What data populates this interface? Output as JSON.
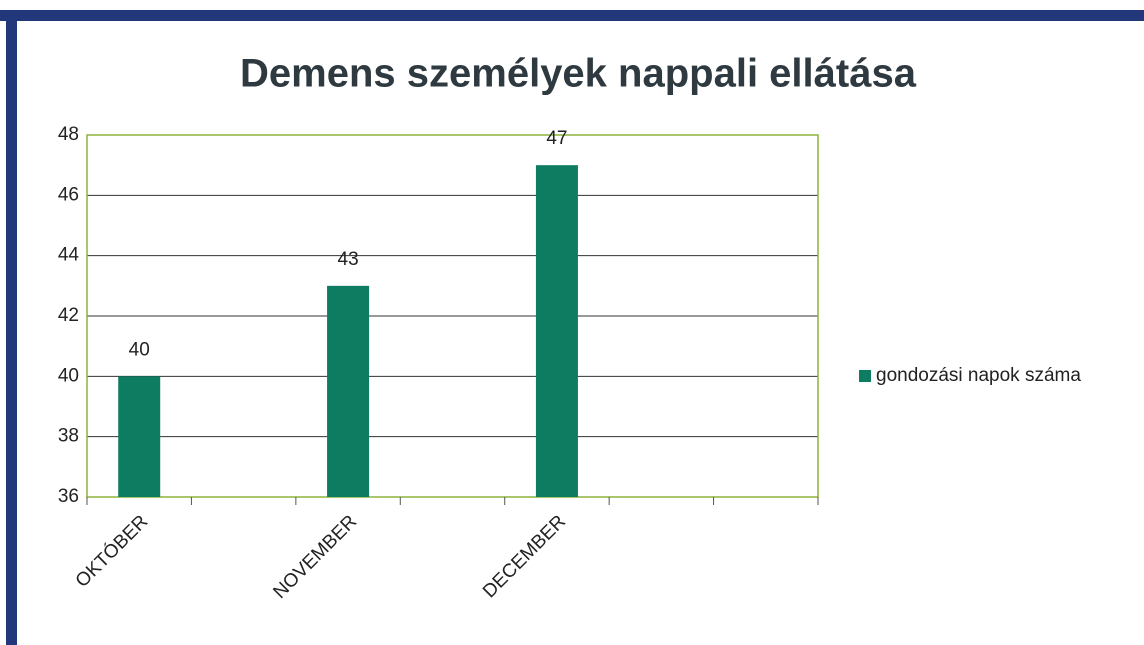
{
  "chart_data": {
    "type": "bar",
    "title": "Demens személyek nappali ellátása",
    "categories": [
      "OKTÓBER",
      null,
      "NOVEMBER",
      null,
      "DECEMBER",
      null,
      null
    ],
    "series": [
      {
        "name": "gondozási napok száma",
        "color": "#0e7c61",
        "values": [
          40,
          null,
          43,
          null,
          47,
          null,
          null
        ]
      }
    ],
    "ylim": [
      36,
      48
    ],
    "yticks": [
      36,
      38,
      40,
      42,
      44,
      46,
      48
    ],
    "grid": true,
    "legend": "right"
  }
}
